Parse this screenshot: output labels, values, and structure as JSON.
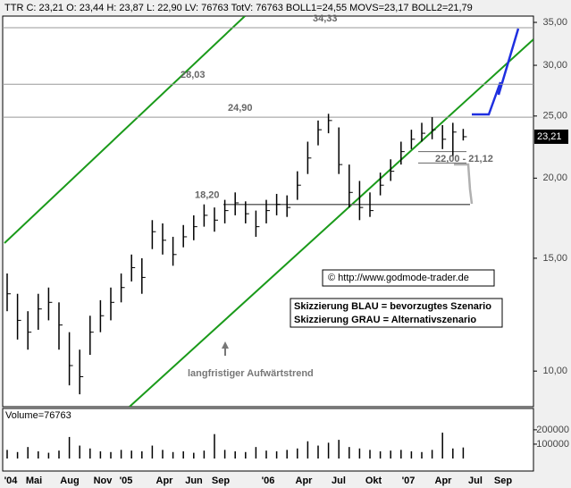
{
  "chart_data": {
    "type": "ohlc",
    "title": "TTR C: 23,21 O: 23,44 H: 23,87 L: 22,90 LV: 76763 TotV: 76763 BOLL1=24,55 MOVS=23,17 BOLL2=21,79",
    "log_scale": true,
    "ylim": [
      8.8,
      35.8
    ],
    "yticks": [
      {
        "value": 10,
        "label": "10,00"
      },
      {
        "value": 15,
        "label": "15,00"
      },
      {
        "value": 20,
        "label": "20,00"
      },
      {
        "value": 25,
        "label": "25,00"
      },
      {
        "value": 30,
        "label": "30,00"
      },
      {
        "value": 35,
        "label": "35,00"
      }
    ],
    "x_labels": [
      "'04",
      "Mai",
      "Aug",
      "Nov",
      "'05",
      "Apr",
      "Jun",
      "Sep",
      "'06",
      "Apr",
      "Jul",
      "Okt",
      "'07",
      "Apr",
      "Jul",
      "Sep"
    ],
    "color": "#000000",
    "high": [
      14.2,
      13.2,
      12.4,
      13.2,
      13.5,
      12.8,
      11.5,
      10.8,
      12.2,
      12.9,
      13.5,
      14.2,
      15.2,
      15.0,
      17.2,
      17.0,
      16.2,
      16.9,
      17.5,
      18.2,
      18.0,
      18.5,
      19.0,
      18.4,
      17.8,
      18.5,
      18.9,
      18.8,
      20.5,
      22.8,
      24.6,
      25.2,
      24.0,
      21.0,
      19.8,
      19.0,
      20.4,
      21.4,
      22.8,
      23.8,
      24.4,
      24.9,
      24.2,
      24.4,
      23.87
    ],
    "low": [
      12.4,
      11.2,
      10.8,
      11.6,
      12.0,
      10.8,
      9.5,
      9.2,
      10.6,
      11.5,
      12.0,
      12.8,
      13.8,
      13.2,
      15.5,
      15.2,
      14.6,
      15.6,
      16.0,
      16.8,
      16.5,
      17.0,
      17.5,
      17.0,
      16.2,
      17.0,
      17.5,
      17.4,
      18.5,
      20.3,
      22.5,
      23.5,
      20.3,
      18.0,
      17.2,
      17.4,
      18.8,
      19.8,
      21.0,
      22.2,
      22.8,
      23.0,
      22.2,
      21.6,
      22.9
    ],
    "close": [
      13.2,
      12.0,
      11.5,
      12.5,
      12.8,
      11.8,
      10.2,
      9.8,
      11.5,
      12.2,
      12.8,
      13.5,
      14.5,
      14.0,
      16.5,
      16.0,
      15.2,
      16.2,
      16.8,
      17.5,
      17.2,
      17.8,
      18.3,
      17.6,
      16.8,
      17.8,
      18.2,
      18.0,
      19.5,
      21.5,
      23.8,
      24.6,
      21.0,
      19.0,
      18.0,
      17.8,
      19.5,
      20.5,
      22.0,
      23.0,
      23.5,
      23.8,
      23.0,
      23.6,
      23.21
    ],
    "last_price": {
      "value": 23.21,
      "label": "23,21"
    },
    "levels": [
      {
        "value": 34.33,
        "label": "34,33"
      },
      {
        "value": 28.03,
        "label": "28,03"
      },
      {
        "value": 24.9,
        "label": "24,90"
      },
      {
        "value": 18.2,
        "label": "18,20"
      }
    ],
    "short_levels": [
      22.0,
      21.12
    ],
    "short_levels_label": "22,00 - 21,12",
    "annotations": [
      "© http://www.godmode-trader.de",
      "Skizzierung BLAU = bevorzugtes Szenario",
      "Skizzierung GRAU = Alternativszenario",
      "langfristiger Aufwärtstrend"
    ],
    "volume": {
      "label": "Volume=76763",
      "ylim": [
        0,
        330000
      ],
      "yticks": [
        100000,
        200000
      ],
      "color": "#000000",
      "values": [
        60000,
        45000,
        80000,
        50000,
        40000,
        55000,
        150000,
        90000,
        70000,
        50000,
        45000,
        60000,
        55000,
        50000,
        90000,
        60000,
        45000,
        50000,
        40000,
        55000,
        170000,
        60000,
        50000,
        45000,
        80000,
        55000,
        50000,
        60000,
        70000,
        120000,
        90000,
        110000,
        130000,
        80000,
        70000,
        60000,
        50000,
        55000,
        60000,
        50000,
        45000,
        60000,
        180000,
        70000,
        76763
      ]
    }
  }
}
